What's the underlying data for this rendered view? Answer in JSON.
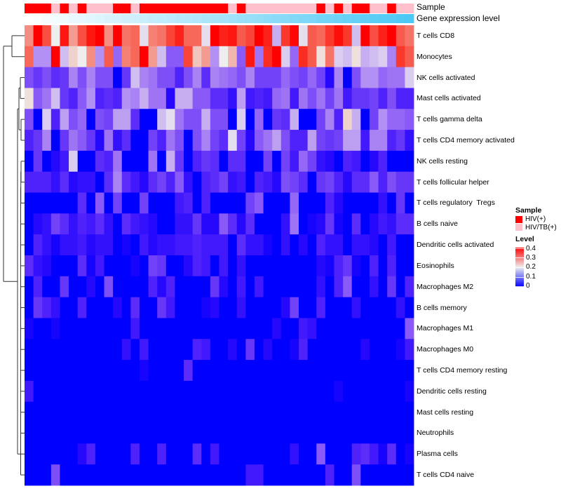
{
  "chart_data": {
    "type": "heatmap",
    "title": "",
    "annotations": {
      "sample": {
        "label": "Sample",
        "values": [
          "HIV(+)",
          "HIV(+)",
          "HIV(+)",
          "HIV/TB(+)",
          "HIV(+)",
          "HIV/TB(+)",
          "HIV(+)",
          "HIV/TB(+)",
          "HIV/TB(+)",
          "HIV/TB(+)",
          "HIV(+)",
          "HIV(+)",
          "HIV/TB(+)",
          "HIV(+)",
          "HIV(+)",
          "HIV(+)",
          "HIV(+)",
          "HIV(+)",
          "HIV(+)",
          "HIV(+)",
          "HIV(+)",
          "HIV(+)",
          "HIV(+)",
          "HIV/TB(+)",
          "HIV(+)",
          "HIV/TB(+)",
          "HIV/TB(+)",
          "HIV/TB(+)",
          "HIV/TB(+)",
          "HIV/TB(+)",
          "HIV/TB(+)",
          "HIV/TB(+)",
          "HIV/TB(+)",
          "HIV(+)",
          "HIV/TB(+)",
          "HIV(+)",
          "HIV/TB(+)",
          "HIV(+)",
          "HIV(+)",
          "HIV/TB(+)",
          "HIV/TB(+)",
          "HIV(+)",
          "HIV/TB(+)",
          "HIV/TB(+)"
        ]
      },
      "gene_expression": {
        "label": "Gene expression level",
        "values": [
          0.0,
          0.02,
          0.05,
          0.07,
          0.09,
          0.12,
          0.14,
          0.16,
          0.19,
          0.21,
          0.23,
          0.26,
          0.28,
          0.3,
          0.33,
          0.35,
          0.37,
          0.4,
          0.42,
          0.44,
          0.47,
          0.49,
          0.51,
          0.53,
          0.56,
          0.58,
          0.6,
          0.63,
          0.65,
          0.67,
          0.7,
          0.72,
          0.74,
          0.77,
          0.79,
          0.81,
          0.84,
          0.86,
          0.88,
          0.91,
          0.93,
          0.95,
          0.98,
          1.0
        ],
        "color_low": "#ffffff",
        "color_high": "#4cc8f4"
      }
    },
    "rows": [
      "T cells CD8",
      "Monocytes",
      "NK cells activated",
      "Mast cells activated",
      "T cells gamma delta",
      "T cells CD4 memory activated",
      "NK cells resting",
      "T cells follicular helper",
      "T cells regulatory  Tregs",
      "B cells naive",
      "Dendritic cells activated",
      "Eosinophils",
      "Macrophages M2",
      "B cells memory",
      "Macrophages M1",
      "Macrophages M0",
      "T cells CD4 memory resting",
      "Dendritic cells resting",
      "Mast cells resting",
      "Neutrophils",
      "Plasma cells",
      "T cells CD4 naive"
    ],
    "n_columns": 44,
    "values": [
      [
        0.27,
        0.4,
        0.32,
        0.2,
        0.37,
        0.26,
        0.32,
        0.37,
        0.4,
        0.27,
        0.4,
        0.29,
        0.3,
        0.19,
        0.28,
        0.29,
        0.33,
        0.36,
        0.3,
        0.3,
        0.19,
        0.4,
        0.36,
        0.37,
        0.31,
        0.33,
        0.4,
        0.36,
        0.16,
        0.34,
        0.39,
        0.19,
        0.31,
        0.3,
        0.34,
        0.38,
        0.34,
        0.17,
        0.4,
        0.32,
        0.36,
        0.4,
        0.31,
        0.29
      ],
      [
        0.3,
        0.14,
        0.14,
        0.4,
        0.17,
        0.22,
        0.2,
        0.27,
        0.14,
        0.31,
        0.11,
        0.28,
        0.3,
        0.4,
        0.26,
        0.17,
        0.1,
        0.1,
        0.33,
        0.23,
        0.26,
        0.14,
        0.2,
        0.24,
        0.1,
        0.37,
        0.12,
        0.35,
        0.4,
        0.18,
        0.11,
        0.35,
        0.31,
        0.21,
        0.29,
        0.18,
        0.17,
        0.21,
        0.16,
        0.17,
        0.18,
        0.13,
        0.34,
        0.31
      ],
      [
        0.09,
        0.07,
        0.09,
        0.06,
        0.07,
        0.13,
        0.09,
        0.13,
        0.09,
        0.09,
        0,
        0.07,
        0.17,
        0.13,
        0.12,
        0.09,
        0.09,
        0.05,
        0.09,
        0.13,
        0.06,
        0.13,
        0.12,
        0.11,
        0.09,
        0.13,
        0.08,
        0.08,
        0.08,
        0.11,
        0.09,
        0.08,
        0.11,
        0.08,
        0.02,
        0.13,
        0,
        0.09,
        0.14,
        0.14,
        0.11,
        0.12,
        0.12,
        0.18
      ],
      [
        0.21,
        0.1,
        0.12,
        0.17,
        0.07,
        0.05,
        0.1,
        0.14,
        0.05,
        0.06,
        0.05,
        0.14,
        0.13,
        0.16,
        0.12,
        0.12,
        0.02,
        0.16,
        0.16,
        0.1,
        0.1,
        0.06,
        0.06,
        0.03,
        0.15,
        0.04,
        0.05,
        0.04,
        0.11,
        0.12,
        0.04,
        0.12,
        0.09,
        0.12,
        0.08,
        0.12,
        0.04,
        0.07,
        0.07,
        0.08,
        0.05,
        0.09,
        0.05,
        0.05
      ],
      [
        0.09,
        0,
        0.18,
        0.05,
        0.15,
        0.09,
        0.11,
        0,
        0.09,
        0.08,
        0.15,
        0.15,
        0.06,
        0,
        0,
        0.17,
        0.19,
        0.12,
        0.09,
        0.09,
        0.16,
        0.09,
        0.09,
        0,
        0.18,
        0,
        0.11,
        0,
        0.07,
        0.06,
        0.16,
        0,
        0,
        0.08,
        0.13,
        0.05,
        0.22,
        0.16,
        0,
        0.08,
        0.14,
        0.11,
        0.11,
        0.1
      ],
      [
        0.05,
        0.07,
        0.13,
        0,
        0.07,
        0.12,
        0.1,
        0.07,
        0.02,
        0.12,
        0.03,
        0.06,
        0,
        0,
        0.08,
        0.05,
        0.12,
        0.09,
        0,
        0.09,
        0.13,
        0.08,
        0.06,
        0.19,
        0.08,
        0.02,
        0.1,
        0.12,
        0.15,
        0.09,
        0.05,
        0.05,
        0.15,
        0.08,
        0.07,
        0.08,
        0.15,
        0.15,
        0.04,
        0.13,
        0.13,
        0.05,
        0.07,
        0.03
      ],
      [
        0,
        0.07,
        0,
        0.02,
        0.04,
        0.18,
        0,
        0,
        0.06,
        0.05,
        0.12,
        0,
        0,
        0,
        0.12,
        0,
        0.16,
        0.07,
        0,
        0.05,
        0.07,
        0.06,
        0,
        0.06,
        0.06,
        0,
        0,
        0.08,
        0,
        0.08,
        0.04,
        0.11,
        0.08,
        0.03,
        0.02,
        0,
        0.05,
        0.04,
        0,
        0.02,
        0.05,
        0,
        0,
        0
      ],
      [
        0.05,
        0.05,
        0.05,
        0.03,
        0.06,
        0.02,
        0.03,
        0.03,
        0,
        0.06,
        0.13,
        0.06,
        0.04,
        0.02,
        0.06,
        0.08,
        0.05,
        0.1,
        0.03,
        0,
        0.05,
        0.06,
        0.08,
        0.03,
        0.04,
        0,
        0.05,
        0.04,
        0.02,
        0.09,
        0.08,
        0.06,
        0,
        0.07,
        0.08,
        0.05,
        0.02,
        0.06,
        0.06,
        0.1,
        0.05,
        0.09,
        0.07,
        0.07
      ],
      [
        0,
        0,
        0,
        0,
        0,
        0,
        0.06,
        0,
        0.1,
        0,
        0.08,
        0,
        0,
        0.08,
        0,
        0,
        0,
        0.04,
        0.05,
        0,
        0.05,
        0,
        0,
        0,
        0,
        0.08,
        0.1,
        0,
        0,
        0,
        0.11,
        0,
        0,
        0,
        0.05,
        0.02,
        0,
        0,
        0,
        0,
        0.03,
        0,
        0.07,
        0
      ],
      [
        0,
        0.02,
        0.03,
        0.08,
        0.06,
        0.03,
        0.05,
        0.04,
        0.06,
        0.03,
        0,
        0.06,
        0.04,
        0.03,
        0.02,
        0,
        0,
        0.03,
        0.03,
        0.07,
        0.02,
        0.02,
        0.1,
        0.06,
        0.02,
        0.06,
        0,
        0,
        0,
        0.03,
        0.12,
        0,
        0.01,
        0.02,
        0.07,
        0.01,
        0,
        0.06,
        0,
        0.02,
        0.04,
        0.03,
        0.06,
        0.06
      ],
      [
        0,
        0.05,
        0.03,
        0.01,
        0.03,
        0.03,
        0.04,
        0.02,
        0.03,
        0.03,
        0,
        0.01,
        0,
        0.04,
        0.02,
        0.03,
        0.03,
        0.04,
        0.04,
        0.05,
        0.04,
        0.04,
        0.04,
        0,
        0.06,
        0.03,
        0.03,
        0.01,
        0,
        0.03,
        0,
        0.02,
        0,
        0.05,
        0.03,
        0.03,
        0,
        0.03,
        0.03,
        0.02,
        0,
        0.04,
        0,
        0
      ],
      [
        0.06,
        0.03,
        0.02,
        0,
        0,
        0,
        0.06,
        0.01,
        0.04,
        0,
        0,
        0,
        0.01,
        0,
        0.08,
        0.07,
        0,
        0,
        0.02,
        0.05,
        0.04,
        0,
        0.04,
        0,
        0.03,
        0,
        0,
        0,
        0,
        0,
        0,
        0,
        0,
        0.02,
        0.01,
        0.05,
        0.07,
        0.01,
        0,
        0.05,
        0,
        0.05,
        0,
        0
      ],
      [
        0,
        0.05,
        0,
        0,
        0.07,
        0,
        0,
        0.02,
        0,
        0.09,
        0,
        0,
        0,
        0,
        0.05,
        0.02,
        0.05,
        0,
        0,
        0,
        0,
        0.07,
        0.02,
        0,
        0.04,
        0,
        0.04,
        0,
        0,
        0,
        0,
        0,
        0,
        0.03,
        0,
        0.05,
        0.1,
        0,
        0,
        0.03,
        0,
        0.07,
        0,
        0.05
      ],
      [
        0,
        0.07,
        0.05,
        0.03,
        0,
        0,
        0.05,
        0,
        0,
        0,
        0.02,
        0,
        0.06,
        0,
        0,
        0.07,
        0.04,
        0,
        0,
        0,
        0.01,
        0.02,
        0,
        0,
        0.03,
        0,
        0,
        0,
        0,
        0.02,
        0.08,
        0,
        0,
        0.05,
        0,
        0,
        0,
        0.03,
        0,
        0,
        0,
        0,
        0.03,
        0
      ],
      [
        0.01,
        0,
        0,
        0.01,
        0,
        0,
        0,
        0,
        0,
        0,
        0,
        0,
        0.04,
        0,
        0,
        0,
        0,
        0,
        0,
        0,
        0,
        0,
        0,
        0,
        0,
        0,
        0,
        0,
        0.02,
        0,
        0,
        0.04,
        0.03,
        0,
        0,
        0,
        0,
        0,
        0,
        0,
        0,
        0,
        0,
        0.1
      ],
      [
        0,
        0,
        0,
        0,
        0,
        0,
        0,
        0,
        0,
        0,
        0,
        0.03,
        0,
        0.04,
        0,
        0,
        0,
        0,
        0,
        0.05,
        0.04,
        0,
        0,
        0.02,
        0,
        0.07,
        0,
        0.02,
        0,
        0,
        0.01,
        0.05,
        0,
        0,
        0,
        0,
        0,
        0,
        0.02,
        0,
        0,
        0,
        0.01,
        0.04
      ],
      [
        0,
        0,
        0,
        0,
        0,
        0,
        0,
        0,
        0,
        0,
        0,
        0,
        0,
        0.01,
        0,
        0,
        0,
        0,
        0.06,
        0,
        0,
        0,
        0,
        0,
        0,
        0,
        0,
        0,
        0,
        0,
        0,
        0,
        0,
        0,
        0,
        0,
        0,
        0,
        0,
        0,
        0,
        0,
        0,
        0
      ],
      [
        0.04,
        0,
        0,
        0,
        0,
        0,
        0,
        0,
        0,
        0,
        0,
        0,
        0,
        0,
        0,
        0,
        0,
        0,
        0,
        0,
        0,
        0,
        0,
        0,
        0,
        0,
        0,
        0,
        0,
        0,
        0,
        0,
        0,
        0,
        0,
        0.01,
        0,
        0,
        0,
        0,
        0,
        0,
        0,
        0.01
      ],
      [
        0,
        0,
        0,
        0,
        0,
        0,
        0,
        0,
        0,
        0,
        0,
        0,
        0,
        0,
        0,
        0,
        0,
        0,
        0,
        0,
        0,
        0,
        0,
        0,
        0,
        0,
        0,
        0,
        0,
        0,
        0,
        0,
        0,
        0,
        0,
        0,
        0,
        0,
        0,
        0,
        0,
        0,
        0,
        0
      ],
      [
        0,
        0,
        0,
        0,
        0,
        0,
        0,
        0,
        0,
        0,
        0,
        0,
        0,
        0,
        0,
        0,
        0,
        0,
        0,
        0,
        0,
        0,
        0,
        0,
        0,
        0,
        0,
        0,
        0,
        0,
        0,
        0,
        0,
        0,
        0,
        0,
        0,
        0,
        0,
        0,
        0,
        0,
        0,
        0
      ],
      [
        0,
        0,
        0,
        0,
        0,
        0,
        0.02,
        0.05,
        0,
        0,
        0,
        0,
        0.05,
        0,
        0,
        0.05,
        0,
        0,
        0,
        0.06,
        0,
        0.04,
        0,
        0,
        0,
        0,
        0,
        0,
        0,
        0,
        0.03,
        0,
        0,
        0.1,
        0,
        0,
        0,
        0.05,
        0.06,
        0.04,
        0.01,
        0.06,
        0,
        0.01
      ],
      [
        0,
        0,
        0,
        0.09,
        0,
        0,
        0,
        0,
        0,
        0,
        0,
        0,
        0,
        0,
        0,
        0,
        0,
        0,
        0,
        0,
        0,
        0,
        0,
        0,
        0,
        0.04,
        0.04,
        0,
        0,
        0,
        0,
        0,
        0,
        0,
        0.05,
        0,
        0,
        0.09,
        0,
        0,
        0,
        0,
        0,
        0
      ]
    ],
    "color_scale": {
      "low": "#0000ff",
      "mid": "#eeeeee",
      "high": "#ff0000",
      "range": [
        0,
        0.4
      ]
    },
    "legend": {
      "placement": "right",
      "sample_title": "Sample",
      "sample_entries": [
        {
          "label": "HIV(+)",
          "color": "#ff0000"
        },
        {
          "label": "HIV/TB(+)",
          "color": "#ffc0cb"
        }
      ],
      "level_title": "Level",
      "level_ticks": [
        "0.4",
        "0.3",
        "0.2",
        "0.1",
        "0"
      ]
    }
  }
}
